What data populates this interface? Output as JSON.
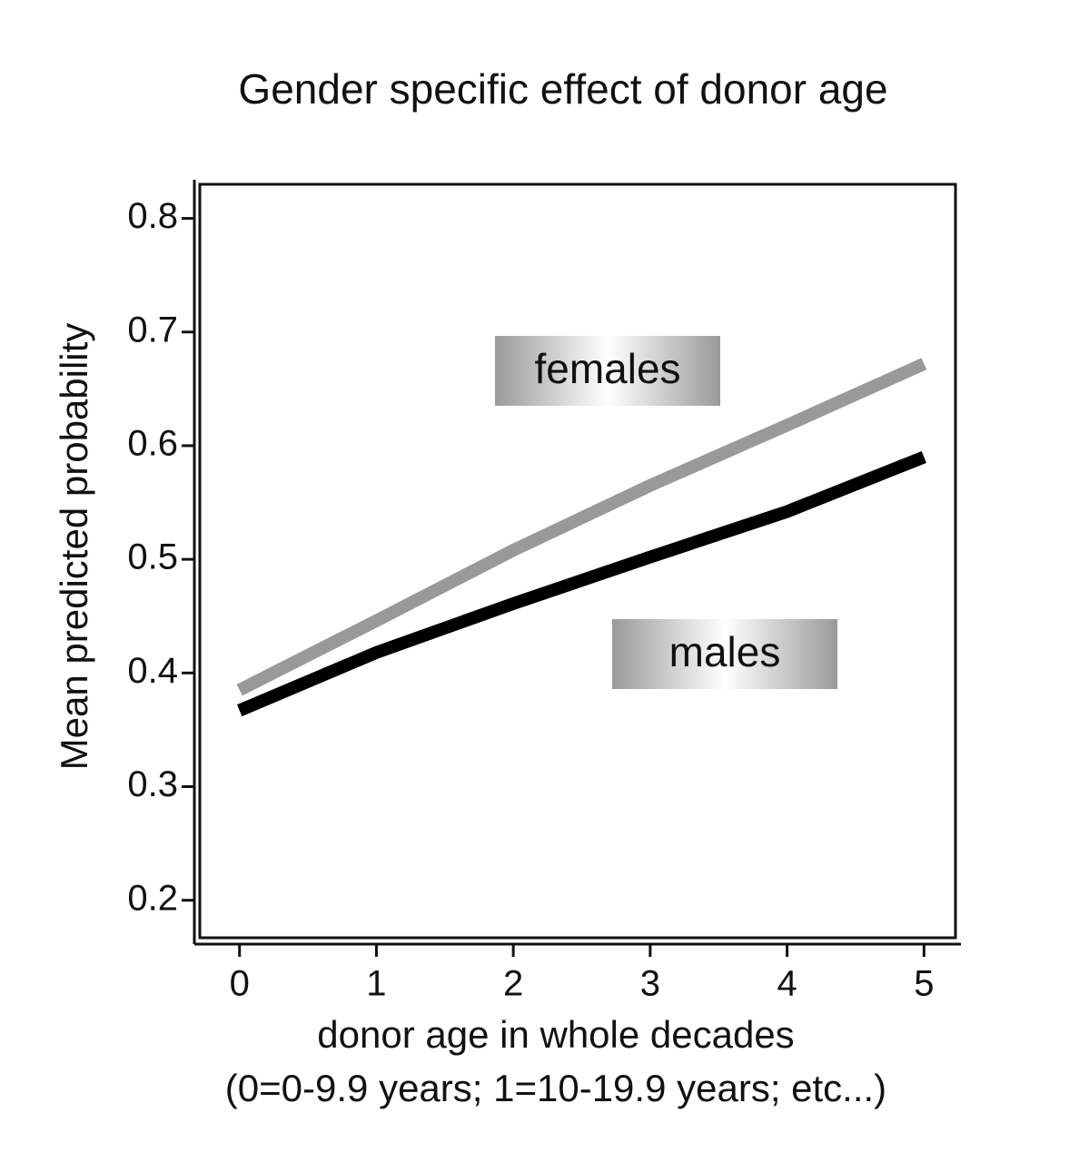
{
  "chart_data": {
    "type": "line",
    "title": "Gender specific effect of donor age",
    "xlabel": "donor age in whole decades",
    "xlabel_note": "(0=0-9.9 years; 1=10-19.9 years; etc...)",
    "ylabel": "Mean predicted probability",
    "x": [
      0,
      1,
      2,
      3,
      4,
      5
    ],
    "series": [
      {
        "name": "females",
        "color": "#999999",
        "values": [
          0.385,
          0.446,
          0.508,
          0.565,
          0.618,
          0.672
        ]
      },
      {
        "name": "males",
        "color": "#000000",
        "values": [
          0.367,
          0.418,
          0.461,
          0.502,
          0.542,
          0.59
        ]
      }
    ],
    "xlim": [
      -0.29,
      5.23
    ],
    "xticks": [
      0,
      1,
      2,
      3,
      4,
      5
    ],
    "ylim": [
      0.167,
      0.83
    ],
    "yticks": [
      0.2,
      0.3,
      0.4,
      0.5,
      0.6,
      0.7,
      0.8
    ],
    "grid": false
  }
}
